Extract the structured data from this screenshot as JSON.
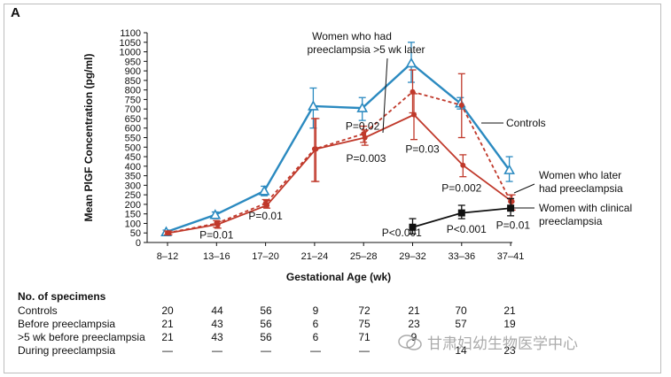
{
  "panel_label": "A",
  "watermark_text": "甘肃妇幼生物医学中心",
  "chart_data": {
    "type": "line",
    "title": "",
    "xlabel": "Gestational Age (wk)",
    "ylabel": "Mean PlGF Concentration (pg/ml)",
    "ylim": [
      0,
      1100
    ],
    "yticks": [
      0,
      50,
      100,
      150,
      200,
      250,
      300,
      350,
      400,
      450,
      500,
      550,
      600,
      650,
      700,
      750,
      800,
      850,
      900,
      950,
      1000,
      1050,
      1100
    ],
    "categories": [
      "8–12",
      "13–16",
      "17–20",
      "21–24",
      "25–28",
      "29–32",
      "33–36",
      "37–41"
    ],
    "grid": false,
    "series": [
      {
        "name": "Controls",
        "color": "#2b8ac0",
        "marker": "triangle-open",
        "values": [
          55,
          145,
          270,
          715,
          705,
          940,
          730,
          380
        ],
        "err_low": [
          45,
          125,
          245,
          600,
          640,
          840,
          700,
          320
        ],
        "err_high": [
          65,
          160,
          295,
          810,
          760,
          1050,
          760,
          450
        ]
      },
      {
        "name": "Women who later had preeclampsia",
        "color": "#c0392b",
        "marker": "circle-filled",
        "values": [
          50,
          95,
          195,
          490,
          550,
          670,
          405,
          215
        ],
        "err_low": [
          40,
          75,
          180,
          320,
          510,
          540,
          345,
          170
        ],
        "err_high": [
          60,
          110,
          220,
          650,
          590,
          780,
          460,
          250
        ]
      },
      {
        "name": "Women who had preeclampsia >5 wk later",
        "color": "#c0392b",
        "marker": "circle-filled",
        "dashed": true,
        "values": [
          50,
          100,
          205,
          490,
          570,
          790,
          720,
          215
        ],
        "err_low": [
          40,
          80,
          185,
          320,
          525,
          680,
          550,
          170
        ],
        "err_high": [
          60,
          115,
          225,
          650,
          610,
          905,
          885,
          250
        ]
      },
      {
        "name": "Women with clinical preeclampsia",
        "color": "#111111",
        "marker": "square-filled",
        "values": [
          null,
          null,
          null,
          null,
          null,
          80,
          155,
          180
        ],
        "err_low": [
          null,
          null,
          null,
          null,
          null,
          45,
          125,
          140
        ],
        "err_high": [
          null,
          null,
          null,
          null,
          null,
          125,
          195,
          230
        ]
      }
    ],
    "annotations": [
      {
        "text": "P=0.01",
        "cat": 1,
        "y": 40
      },
      {
        "text": "P=0.01",
        "cat": 2,
        "y": 140
      },
      {
        "text": "P=0.02",
        "cat": 3.98,
        "y": 610
      },
      {
        "text": "P=0.003",
        "cat": 4.05,
        "y": 440
      },
      {
        "text": "P=0.03",
        "cat": 5.2,
        "y": 490
      },
      {
        "text": "P<0.001",
        "cat": 4.78,
        "y": 50
      },
      {
        "text": "P=0.002",
        "cat": 6,
        "y": 285
      },
      {
        "text": "P<0.001",
        "cat": 6.1,
        "y": 70
      },
      {
        "text": "P=0.01",
        "cat": 7.05,
        "y": 90
      }
    ],
    "legend_labels": [
      {
        "lines": [
          "Women who had",
          "preeclampsia >5 wk later"
        ]
      },
      {
        "lines": [
          "Controls"
        ]
      },
      {
        "lines": [
          "Women who later",
          "had preeclampsia"
        ]
      },
      {
        "lines": [
          "Women with clinical",
          "preeclampsia"
        ]
      }
    ]
  },
  "specimens_table": {
    "header": "No. of specimens",
    "rows": [
      {
        "label": "Controls",
        "values": [
          "20",
          "44",
          "56",
          "9",
          "72",
          "21",
          "70",
          "21"
        ]
      },
      {
        "label": "Before preeclampsia",
        "values": [
          "21",
          "43",
          "56",
          "6",
          "75",
          "23",
          "57",
          "19"
        ]
      },
      {
        "label": ">5 wk before preeclampsia",
        "values": [
          "21",
          "43",
          "56",
          "6",
          "71",
          "9",
          "",
          ""
        ]
      },
      {
        "label": "During preeclampsia",
        "values": [
          "—",
          "—",
          "—",
          "—",
          "—",
          "",
          "14",
          "23"
        ]
      }
    ]
  }
}
